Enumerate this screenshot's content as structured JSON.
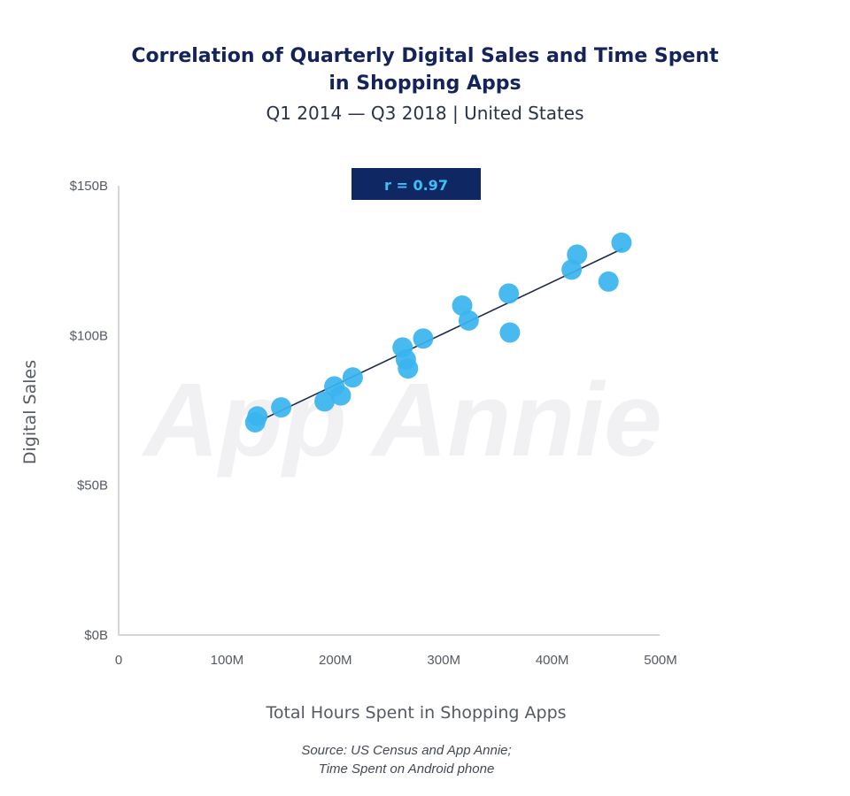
{
  "title_lines": [
    "Correlation of Quarterly Digital Sales and Time Spent",
    "in Shopping Apps"
  ],
  "subtitle": "Q1 2014 — Q3 2018 | United States",
  "watermark": "App Annie",
  "source_lines": [
    "Source: US Census and App Annie;",
    "Time Spent on Android phone"
  ],
  "colors": {
    "title": "#14245a",
    "point": "#3ab4ef",
    "trendline": "#1f2a4d",
    "badge_bg": "#0f2763",
    "badge_text": "#3fc0f5",
    "axis": "#c8c8c8"
  },
  "chart_data": {
    "type": "scatter",
    "title": "Correlation of Quarterly Digital Sales and Time Spent in Shopping Apps",
    "subtitle": "Q1 2014 — Q3 2018 | United States",
    "xlabel": "Total Hours Spent in Shopping Apps",
    "ylabel": "Digital Sales",
    "xlim": [
      0,
      500
    ],
    "ylim": [
      0,
      150
    ],
    "x_ticks": [
      0,
      100,
      200,
      300,
      400,
      500
    ],
    "x_tick_labels": [
      "0",
      "100M",
      "200M",
      "300M",
      "400M",
      "500M"
    ],
    "y_ticks": [
      0,
      50,
      100,
      150
    ],
    "y_tick_labels": [
      "$0B",
      "$50B",
      "$100B",
      "$150B"
    ],
    "annotation": "r = 0.97",
    "grid": false,
    "points": [
      {
        "x": 126,
        "y": 71
      },
      {
        "x": 128,
        "y": 73
      },
      {
        "x": 150,
        "y": 76
      },
      {
        "x": 190,
        "y": 78
      },
      {
        "x": 199,
        "y": 83
      },
      {
        "x": 205,
        "y": 80
      },
      {
        "x": 216,
        "y": 86
      },
      {
        "x": 262,
        "y": 96
      },
      {
        "x": 265,
        "y": 92
      },
      {
        "x": 267,
        "y": 89
      },
      {
        "x": 281,
        "y": 99
      },
      {
        "x": 317,
        "y": 110
      },
      {
        "x": 323,
        "y": 105
      },
      {
        "x": 360,
        "y": 114
      },
      {
        "x": 361,
        "y": 101
      },
      {
        "x": 418,
        "y": 122
      },
      {
        "x": 423,
        "y": 127
      },
      {
        "x": 452,
        "y": 118
      },
      {
        "x": 464,
        "y": 131
      }
    ],
    "trendline": {
      "x": [
        127,
        465
      ],
      "y": [
        71,
        129
      ]
    }
  }
}
